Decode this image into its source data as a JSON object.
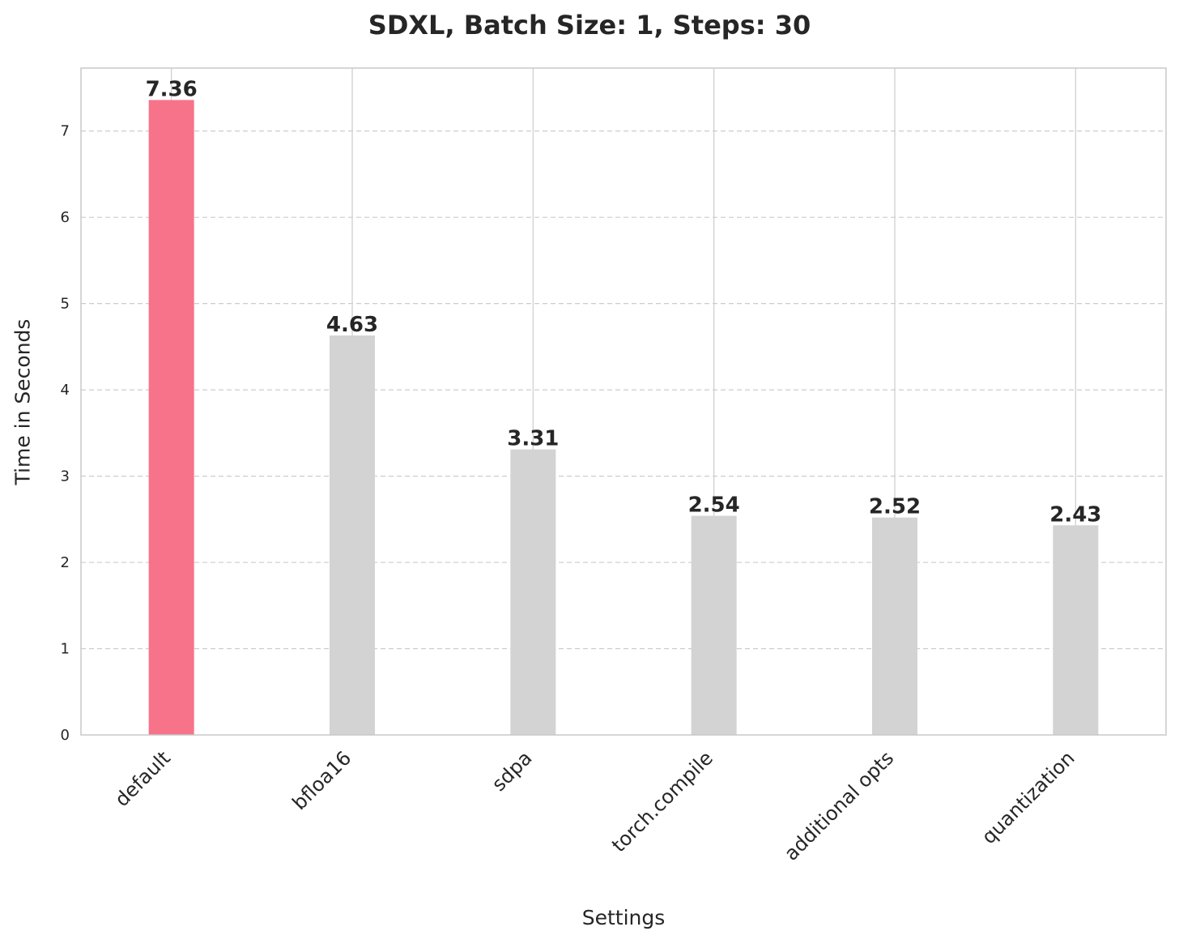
{
  "chart_data": {
    "type": "bar",
    "title": "SDXL, Batch Size: 1, Steps: 30",
    "xlabel": "Settings",
    "ylabel": "Time in Seconds",
    "categories": [
      "default",
      "bfloa16",
      "sdpa",
      "torch.compile",
      "additional opts",
      "quantization"
    ],
    "values": [
      7.36,
      4.63,
      3.31,
      2.54,
      2.52,
      2.43
    ],
    "data_labels": [
      "7.36",
      "4.63",
      "3.31",
      "2.54",
      "2.52",
      "2.43"
    ],
    "ylim": [
      0,
      7.73
    ],
    "yticks": [
      0,
      1,
      2,
      3,
      4,
      5,
      6,
      7
    ],
    "grid": true,
    "colors": {
      "highlight": "#f7738a",
      "bar": "#d3d3d3",
      "grid": "#cccccc",
      "axis": "#c8c8c8",
      "text": "#262626"
    }
  }
}
